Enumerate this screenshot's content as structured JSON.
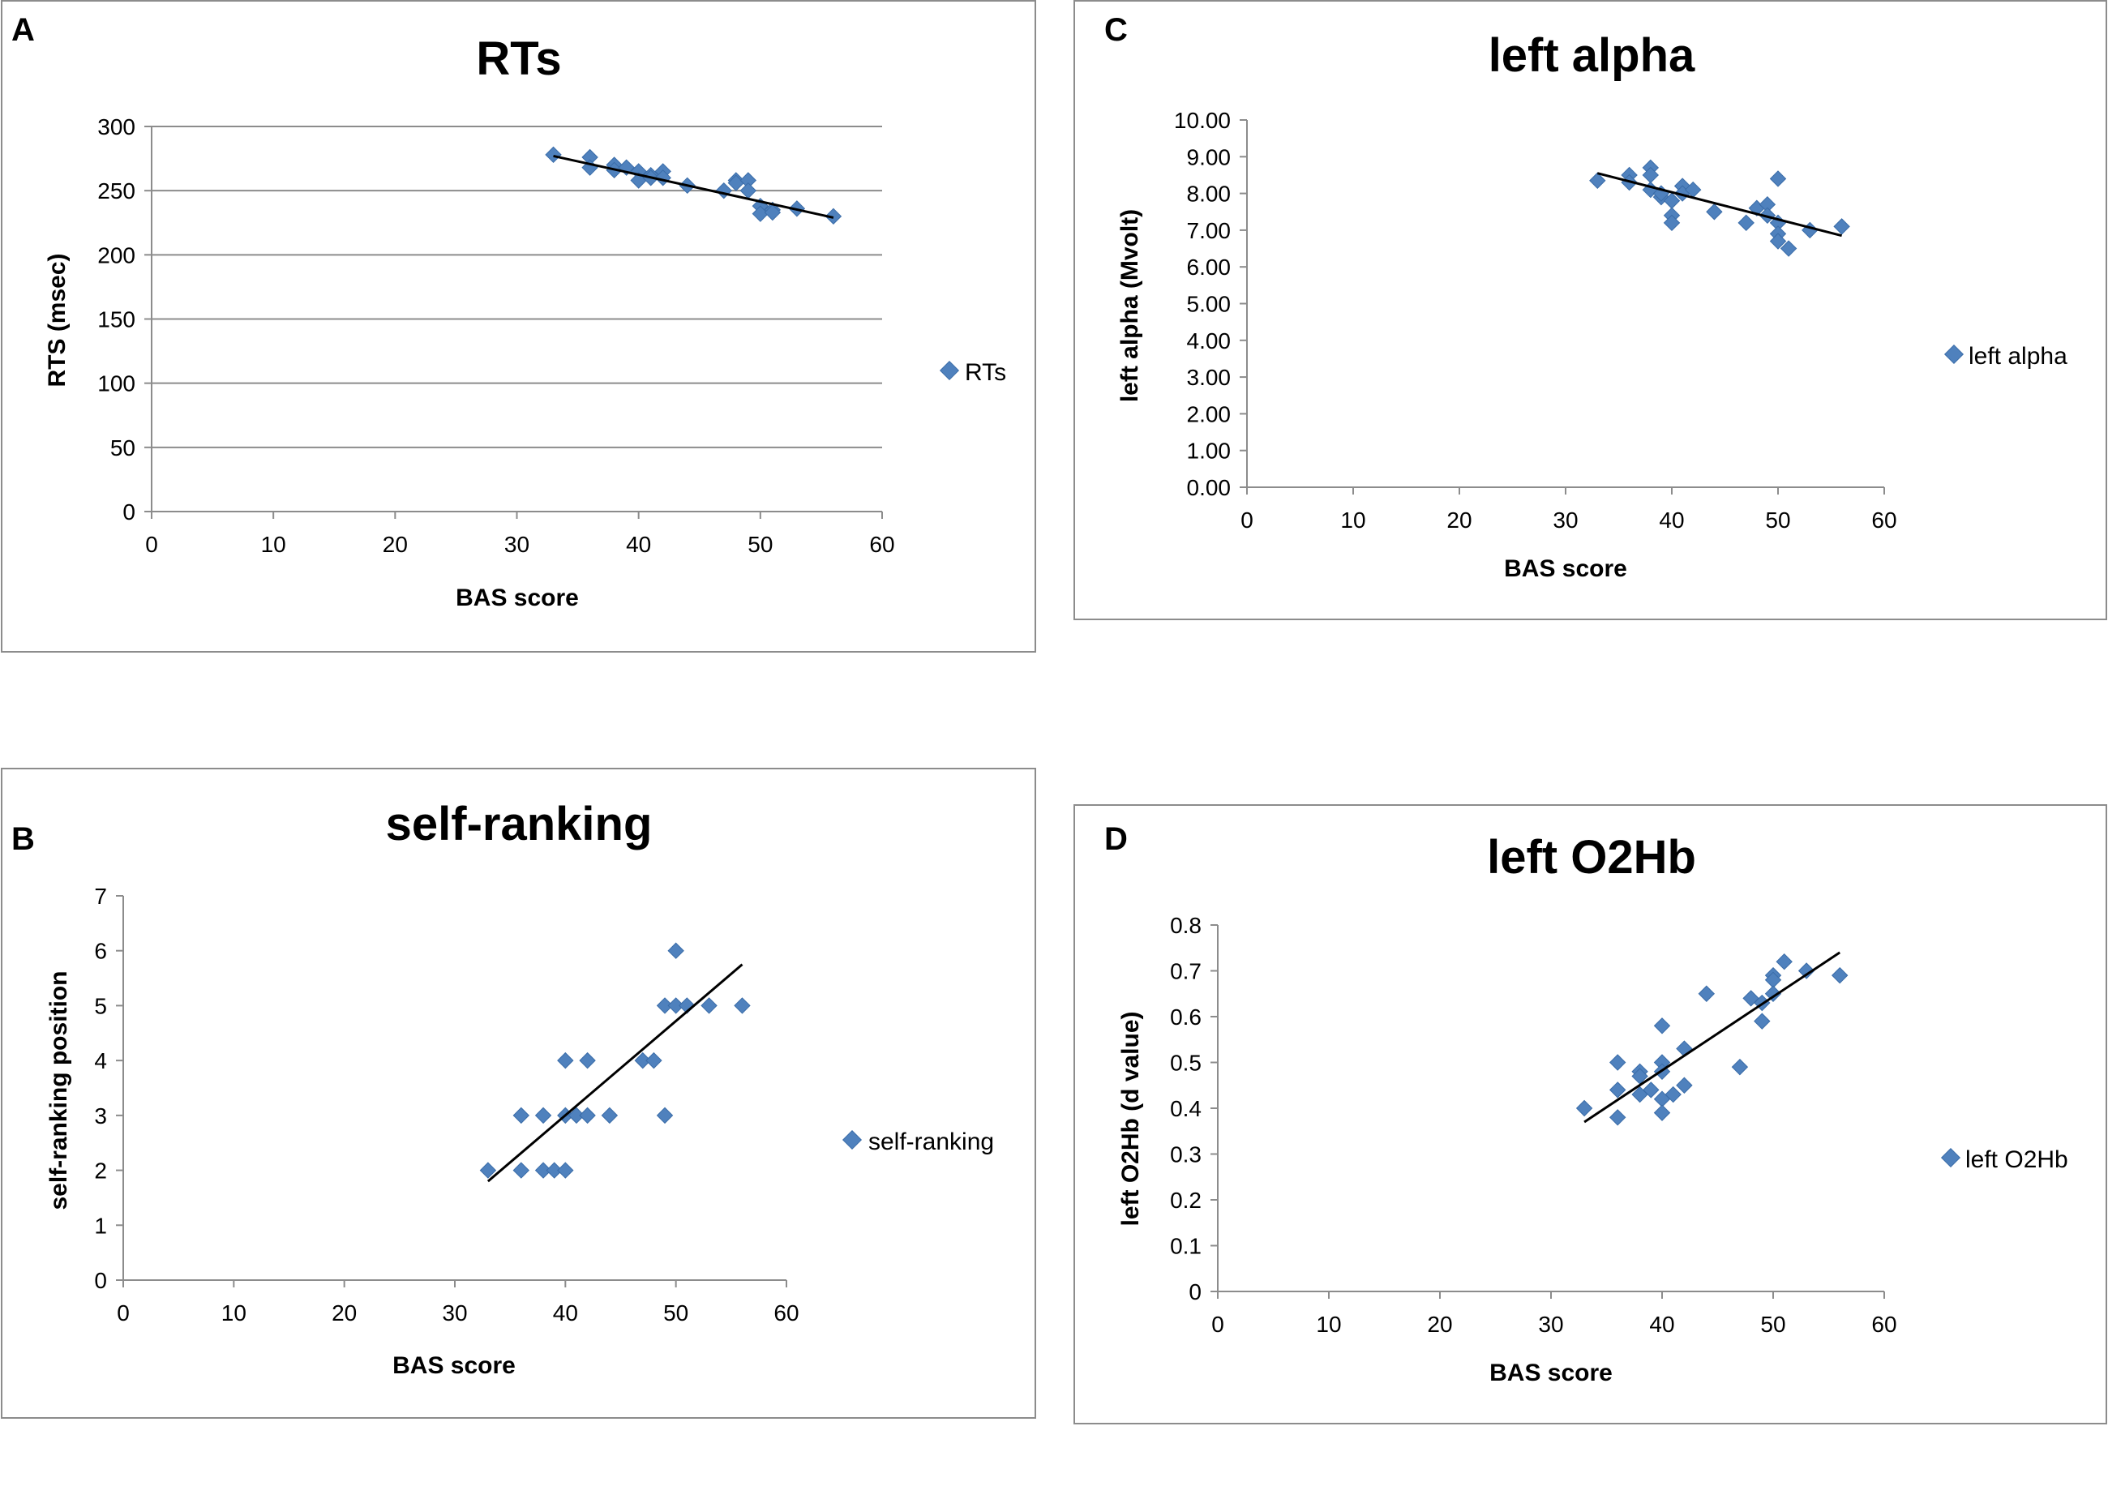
{
  "colors": {
    "marker": "#4f81bd",
    "marker_stroke": "#3a6ca8",
    "trend": "#000000",
    "grid": "#8c8c8c"
  },
  "chart_data": [
    {
      "panel": "A",
      "type": "scatter",
      "title": "RTs",
      "xlabel": "BAS score",
      "ylabel": "RTS (msec)",
      "legend": "RTs",
      "legend_position": "right",
      "xlim": [
        0,
        60
      ],
      "ylim": [
        0,
        300
      ],
      "xticks": [
        "0",
        "10",
        "20",
        "30",
        "40",
        "50",
        "60"
      ],
      "yticks": [
        "0",
        "50",
        "100",
        "150",
        "200",
        "250",
        "300"
      ],
      "grid": true,
      "trendline": [
        [
          33,
          277
        ],
        [
          56,
          229
        ]
      ],
      "points": [
        [
          33,
          278
        ],
        [
          36,
          276
        ],
        [
          36,
          268
        ],
        [
          38,
          270
        ],
        [
          38,
          266
        ],
        [
          39,
          268
        ],
        [
          40,
          265
        ],
        [
          40,
          258
        ],
        [
          41,
          262
        ],
        [
          41,
          260
        ],
        [
          42,
          265
        ],
        [
          42,
          260
        ],
        [
          44,
          254
        ],
        [
          47,
          250
        ],
        [
          48,
          258
        ],
        [
          48,
          256
        ],
        [
          49,
          258
        ],
        [
          49,
          250
        ],
        [
          50,
          238
        ],
        [
          50,
          232
        ],
        [
          51,
          235
        ],
        [
          51,
          233
        ],
        [
          53,
          236
        ],
        [
          56,
          230
        ]
      ]
    },
    {
      "panel": "B",
      "type": "scatter",
      "title": "self-ranking",
      "xlabel": "BAS score",
      "ylabel": "self-ranking position",
      "legend": "self-ranking",
      "legend_position": "right",
      "xlim": [
        0,
        60
      ],
      "ylim": [
        0,
        7
      ],
      "xticks": [
        "0",
        "10",
        "20",
        "30",
        "40",
        "50",
        "60"
      ],
      "yticks": [
        "0",
        "1",
        "2",
        "3",
        "4",
        "5",
        "6",
        "7"
      ],
      "grid": false,
      "trendline": [
        [
          33,
          1.8
        ],
        [
          56,
          5.75
        ]
      ],
      "points": [
        [
          33,
          2
        ],
        [
          36,
          3
        ],
        [
          36,
          2
        ],
        [
          38,
          3
        ],
        [
          38,
          2
        ],
        [
          39,
          2
        ],
        [
          40,
          4
        ],
        [
          40,
          3
        ],
        [
          40,
          2
        ],
        [
          41,
          3
        ],
        [
          42,
          4
        ],
        [
          42,
          3
        ],
        [
          44,
          3
        ],
        [
          47,
          4
        ],
        [
          48,
          4
        ],
        [
          49,
          5
        ],
        [
          49,
          3
        ],
        [
          50,
          6
        ],
        [
          50,
          5
        ],
        [
          51,
          5
        ],
        [
          53,
          5
        ],
        [
          56,
          5
        ]
      ]
    },
    {
      "panel": "C",
      "type": "scatter",
      "title": "left alpha",
      "xlabel": "BAS score",
      "ylabel": "left alpha (Mvolt)",
      "legend": "left alpha",
      "legend_position": "right",
      "xlim": [
        0,
        60
      ],
      "ylim": [
        0,
        10
      ],
      "xticks": [
        "0",
        "10",
        "20",
        "30",
        "40",
        "50",
        "60"
      ],
      "yticks": [
        "0.00",
        "1.00",
        "2.00",
        "3.00",
        "4.00",
        "5.00",
        "6.00",
        "7.00",
        "8.00",
        "9.00",
        "10.00"
      ],
      "grid": false,
      "trendline": [
        [
          33,
          8.55
        ],
        [
          56,
          6.85
        ]
      ],
      "points": [
        [
          33,
          8.35
        ],
        [
          36,
          8.5
        ],
        [
          36,
          8.3
        ],
        [
          38,
          8.7
        ],
        [
          38,
          8.5
        ],
        [
          38,
          8.1
        ],
        [
          39,
          7.9
        ],
        [
          39,
          8.0
        ],
        [
          40,
          7.8
        ],
        [
          40,
          7.4
        ],
        [
          40,
          7.2
        ],
        [
          41,
          8.2
        ],
        [
          41,
          8.0
        ],
        [
          42,
          8.1
        ],
        [
          44,
          7.5
        ],
        [
          47,
          7.2
        ],
        [
          48,
          7.6
        ],
        [
          49,
          7.7
        ],
        [
          49,
          7.4
        ],
        [
          50,
          8.4
        ],
        [
          50,
          7.2
        ],
        [
          50,
          6.9
        ],
        [
          50,
          6.7
        ],
        [
          51,
          6.5
        ],
        [
          53,
          7.0
        ],
        [
          56,
          7.1
        ]
      ]
    },
    {
      "panel": "D",
      "type": "scatter",
      "title": "left O2Hb",
      "xlabel": "BAS score",
      "ylabel": "left O2Hb (d value)",
      "legend": "left O2Hb",
      "legend_position": "right",
      "xlim": [
        0,
        60
      ],
      "ylim": [
        0,
        0.8
      ],
      "xticks": [
        "0",
        "10",
        "20",
        "30",
        "40",
        "50",
        "60"
      ],
      "yticks": [
        "0",
        "0.1",
        "0.2",
        "0.3",
        "0.4",
        "0.5",
        "0.6",
        "0.7",
        "0.8"
      ],
      "grid": false,
      "trendline": [
        [
          33,
          0.37
        ],
        [
          56,
          0.74
        ]
      ],
      "points": [
        [
          33,
          0.4
        ],
        [
          36,
          0.5
        ],
        [
          36,
          0.44
        ],
        [
          36,
          0.38
        ],
        [
          38,
          0.48
        ],
        [
          38,
          0.47
        ],
        [
          38,
          0.43
        ],
        [
          39,
          0.44
        ],
        [
          40,
          0.58
        ],
        [
          40,
          0.5
        ],
        [
          40,
          0.48
        ],
        [
          40,
          0.42
        ],
        [
          40,
          0.39
        ],
        [
          41,
          0.43
        ],
        [
          42,
          0.53
        ],
        [
          42,
          0.45
        ],
        [
          44,
          0.65
        ],
        [
          47,
          0.49
        ],
        [
          48,
          0.64
        ],
        [
          49,
          0.59
        ],
        [
          49,
          0.63
        ],
        [
          50,
          0.69
        ],
        [
          50,
          0.68
        ],
        [
          50,
          0.65
        ],
        [
          51,
          0.72
        ],
        [
          53,
          0.7
        ],
        [
          56,
          0.69
        ]
      ]
    }
  ]
}
